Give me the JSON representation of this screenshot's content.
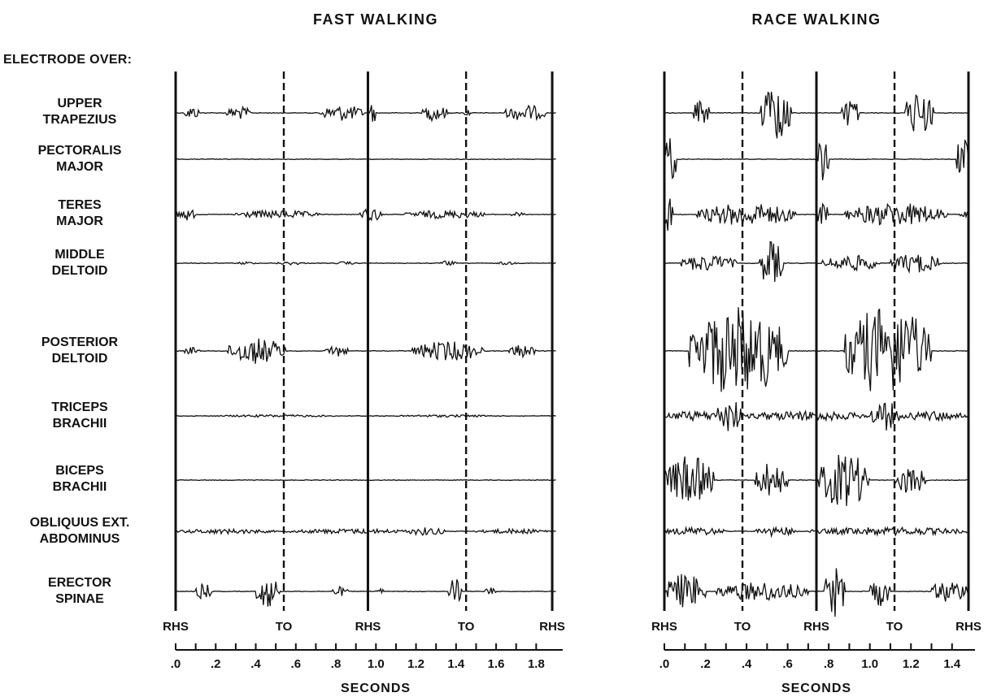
{
  "header_label": "ELECTRODE OVER:",
  "muscles": [
    {
      "line1": "UPPER",
      "line2": "TRAPEZIUS"
    },
    {
      "line1": "PECTORALIS",
      "line2": "MAJOR"
    },
    {
      "line1": "TERES",
      "line2": "MAJOR"
    },
    {
      "line1": "MIDDLE",
      "line2": "DELTOID"
    },
    {
      "line1": "POSTERIOR",
      "line2": "DELTOID"
    },
    {
      "line1": "TRICEPS",
      "line2": "BRACHII"
    },
    {
      "line1": "BICEPS",
      "line2": "BRACHII"
    },
    {
      "line1": "OBLIQUUS EXT.",
      "line2": "ABDOMINUS"
    },
    {
      "line1": "ERECTOR",
      "line2": "SPINAE"
    }
  ],
  "chart_data": [
    {
      "type": "line",
      "title": "FAST WALKING",
      "xlabel": "SECONDS",
      "xlim": [
        0,
        1.9
      ],
      "tick_labels": [
        ".0",
        ".2",
        ".4",
        ".6",
        ".8",
        "1.0",
        "1.2",
        "1.4",
        "1.6",
        "1.8"
      ],
      "tick_values": [
        0,
        0.2,
        0.4,
        0.6,
        0.8,
        1.0,
        1.2,
        1.4,
        1.6,
        1.8
      ],
      "events": [
        {
          "label": "RHS",
          "t": 0.0,
          "style": "solid"
        },
        {
          "label": "TO",
          "t": 0.54,
          "style": "dashed"
        },
        {
          "label": "RHS",
          "t": 0.96,
          "style": "solid"
        },
        {
          "label": "TO",
          "t": 1.45,
          "style": "dashed"
        },
        {
          "label": "RHS",
          "t": 1.88,
          "style": "solid"
        }
      ],
      "series": [
        {
          "name": "UPPER TRAPEZIUS",
          "bursts": [
            [
              0.04,
              0.12,
              8
            ],
            [
              0.25,
              0.38,
              8
            ],
            [
              0.72,
              0.94,
              10
            ],
            [
              0.97,
              1.0,
              14
            ],
            [
              1.23,
              1.36,
              10
            ],
            [
              1.44,
              1.47,
              6
            ],
            [
              1.64,
              1.85,
              10
            ]
          ]
        },
        {
          "name": "PECTORALIS MAJOR",
          "bursts": []
        },
        {
          "name": "TERES MAJOR",
          "bursts": [
            [
              0.0,
              0.1,
              8
            ],
            [
              0.28,
              0.72,
              5
            ],
            [
              0.92,
              1.04,
              8
            ],
            [
              1.14,
              1.55,
              5
            ],
            [
              1.67,
              1.74,
              3
            ]
          ]
        },
        {
          "name": "MIDDLE DELTOID",
          "bursts": [
            [
              0.3,
              0.4,
              2
            ],
            [
              0.5,
              0.65,
              2
            ],
            [
              0.8,
              0.9,
              2
            ],
            [
              1.32,
              1.4,
              3
            ],
            [
              1.6,
              1.7,
              2
            ]
          ]
        },
        {
          "name": "POSTERIOR DELTOID",
          "bursts": [
            [
              0.04,
              0.12,
              5
            ],
            [
              0.26,
              0.55,
              16
            ],
            [
              0.75,
              0.86,
              8
            ],
            [
              1.18,
              1.54,
              12
            ],
            [
              1.66,
              1.8,
              8
            ]
          ]
        },
        {
          "name": "TRICEPS BRACHII",
          "bursts": [
            [
              0.2,
              0.8,
              1.5
            ],
            [
              1.1,
              1.6,
              1.5
            ]
          ]
        },
        {
          "name": "BICEPS BRACHII",
          "bursts": []
        },
        {
          "name": "OBLIQUUS EXT. ABDOMINUS",
          "bursts": [
            [
              0.0,
              0.5,
              3
            ],
            [
              0.55,
              1.2,
              3
            ],
            [
              1.15,
              1.35,
              5
            ],
            [
              1.5,
              1.88,
              3
            ]
          ]
        },
        {
          "name": "ERECTOR SPINAE",
          "bursts": [
            [
              0.1,
              0.18,
              10
            ],
            [
              0.4,
              0.52,
              20
            ],
            [
              0.78,
              0.86,
              6
            ],
            [
              1.0,
              1.04,
              4
            ],
            [
              1.36,
              1.43,
              18
            ],
            [
              1.53,
              1.6,
              5
            ]
          ]
        }
      ]
    },
    {
      "type": "line",
      "title": "RACE WALKING",
      "xlabel": "SECONDS",
      "xlim": [
        0,
        1.48
      ],
      "tick_labels": [
        ".0",
        ".2",
        ".4",
        ".6",
        ".8",
        "1.0",
        "1.2",
        "1.4"
      ],
      "tick_values": [
        0,
        0.2,
        0.4,
        0.6,
        0.8,
        1.0,
        1.2,
        1.4
      ],
      "events": [
        {
          "label": "RHS",
          "t": 0.0,
          "style": "solid"
        },
        {
          "label": "TO",
          "t": 0.38,
          "style": "dashed"
        },
        {
          "label": "RHS",
          "t": 0.74,
          "style": "solid"
        },
        {
          "label": "TO",
          "t": 1.12,
          "style": "dashed"
        },
        {
          "label": "RHS",
          "t": 1.48,
          "style": "solid"
        }
      ],
      "series": [
        {
          "name": "UPPER TRAPEZIUS",
          "bursts": [
            [
              0.14,
              0.22,
              16
            ],
            [
              0.47,
              0.62,
              38
            ],
            [
              0.86,
              0.95,
              18
            ],
            [
              1.17,
              1.31,
              28
            ]
          ]
        },
        {
          "name": "PECTORALIS MAJOR",
          "bursts": [
            [
              0.0,
              0.06,
              30
            ],
            [
              0.74,
              0.8,
              26
            ],
            [
              1.42,
              1.48,
              30
            ]
          ]
        },
        {
          "name": "TERES MAJOR",
          "bursts": [
            [
              0.0,
              0.04,
              28
            ],
            [
              0.16,
              0.64,
              14
            ],
            [
              0.74,
              0.8,
              14
            ],
            [
              0.88,
              1.38,
              14
            ],
            [
              1.44,
              1.48,
              6
            ]
          ]
        },
        {
          "name": "MIDDLE DELTOID",
          "bursts": [
            [
              0.07,
              0.35,
              10
            ],
            [
              0.46,
              0.58,
              28
            ],
            [
              0.77,
              1.05,
              10
            ],
            [
              1.1,
              1.35,
              12
            ]
          ]
        },
        {
          "name": "POSTERIOR DELTOID",
          "bursts": [
            [
              0.12,
              0.6,
              55
            ],
            [
              0.87,
              1.3,
              55
            ]
          ]
        },
        {
          "name": "TRICEPS BRACHII",
          "bursts": [
            [
              0.0,
              0.3,
              6
            ],
            [
              0.25,
              0.38,
              22
            ],
            [
              0.38,
              1.0,
              6
            ],
            [
              1.0,
              1.15,
              18
            ],
            [
              1.15,
              1.48,
              6
            ]
          ]
        },
        {
          "name": "BICEPS BRACHII",
          "bursts": [
            [
              0.0,
              0.24,
              30
            ],
            [
              0.44,
              0.6,
              22
            ],
            [
              0.75,
              1.0,
              34
            ],
            [
              1.12,
              1.28,
              18
            ]
          ]
        },
        {
          "name": "OBLIQUUS EXT. ABDOMINUS",
          "bursts": [
            [
              0.0,
              0.3,
              5
            ],
            [
              0.44,
              0.65,
              6
            ],
            [
              0.7,
              1.48,
              5
            ]
          ]
        },
        {
          "name": "ERECTOR SPINAE",
          "bursts": [
            [
              0.0,
              0.2,
              22
            ],
            [
              0.25,
              0.7,
              12
            ],
            [
              0.78,
              0.88,
              32
            ],
            [
              1.0,
              1.1,
              18
            ],
            [
              1.3,
              1.48,
              14
            ]
          ]
        }
      ]
    }
  ]
}
